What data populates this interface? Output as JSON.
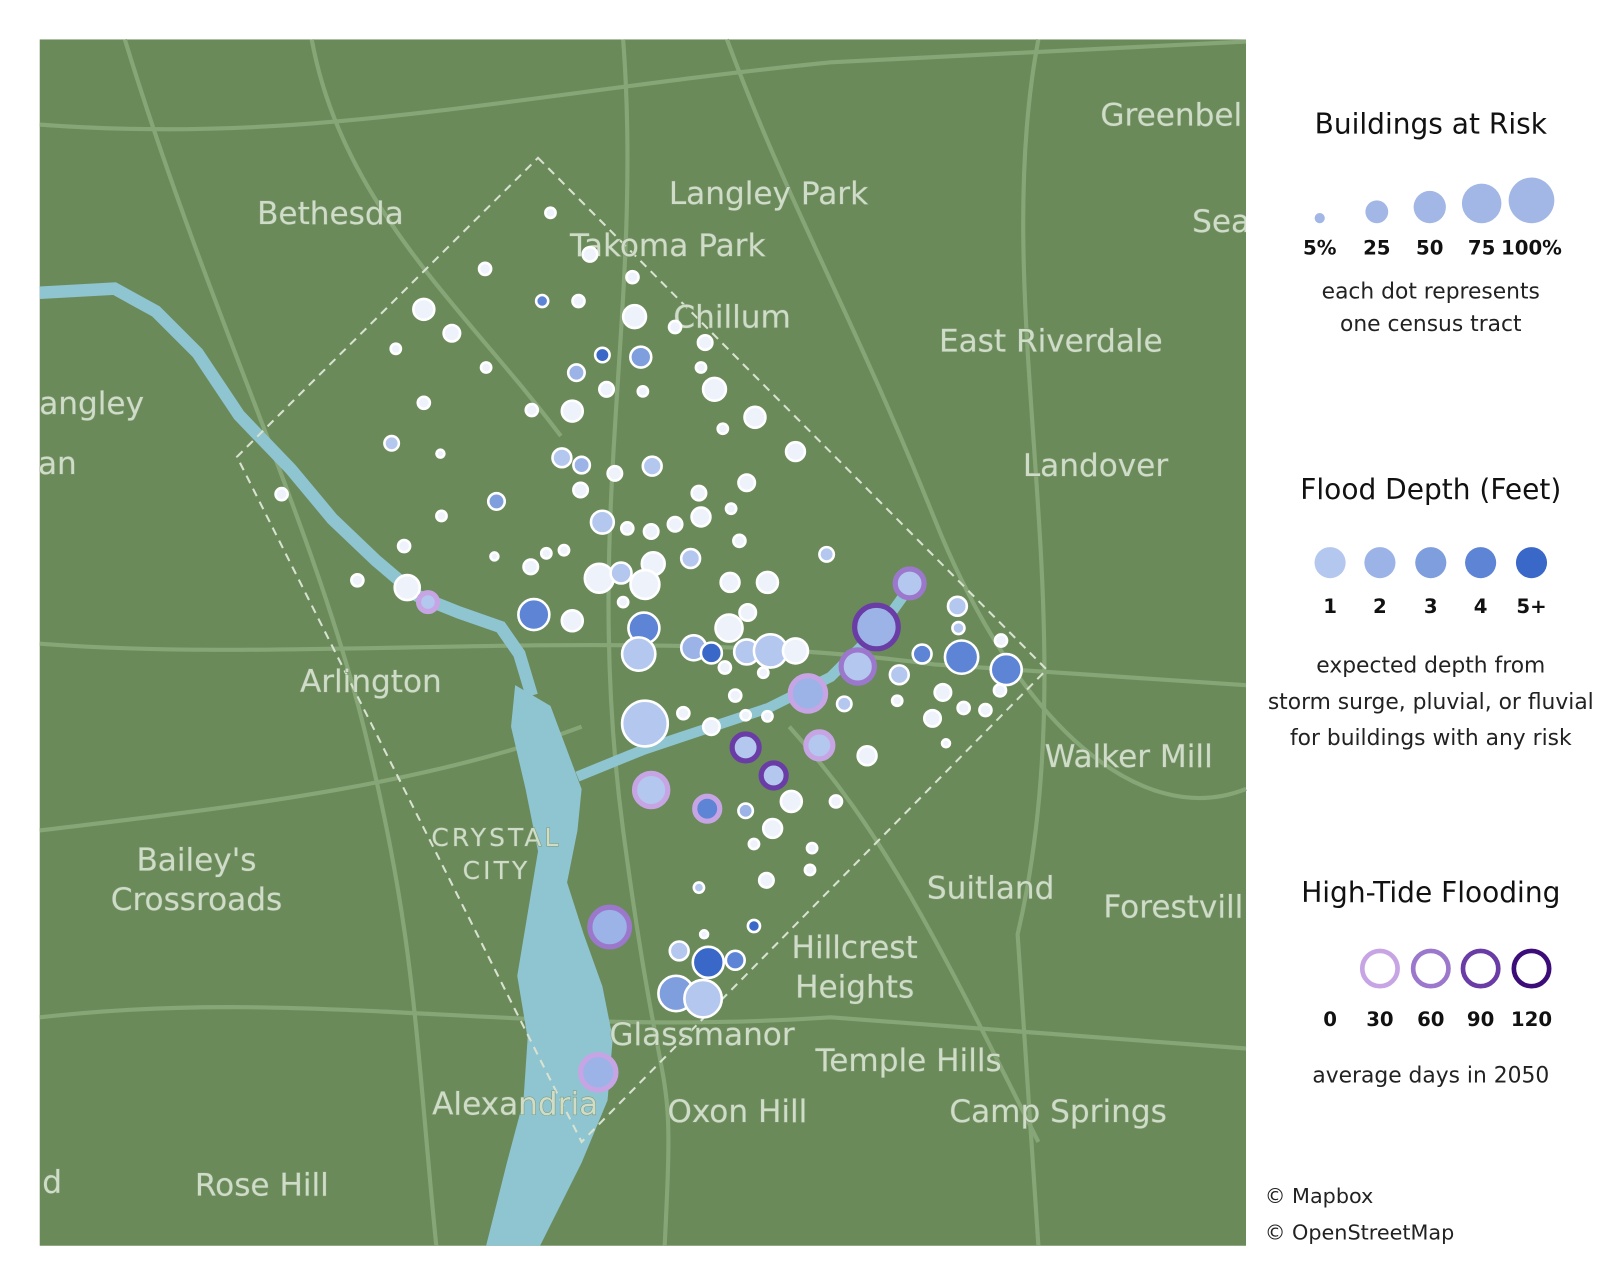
{
  "map": {
    "places": [
      "Greenbel",
      "Sea",
      "Bethesda",
      "Langley Park",
      "Takoma Park",
      "Chillum",
      "East Riverdale",
      "angley",
      "an",
      "Landover",
      "Arlington",
      "Walker Mill",
      "CRYSTAL",
      "CITY",
      "Bailey's",
      "Crossroads",
      "Suitland",
      "Forestvill",
      "Hillcrest",
      "Heights",
      "Glassmanor",
      "Temple Hills",
      "Alexandria",
      "Oxon Hill",
      "Camp Springs",
      "d",
      "Rose Hill"
    ],
    "attribution": [
      "© Mapbox",
      "© OpenStreetMap"
    ],
    "tracts": {
      "risk": [
        5,
        10,
        7,
        7,
        7,
        7,
        21,
        25,
        13,
        7,
        10,
        5,
        10,
        21,
        5,
        5,
        13,
        10,
        5,
        25,
        7,
        7,
        21,
        21,
        5,
        10,
        3,
        17,
        13,
        17,
        17,
        10,
        10,
        13,
        7,
        13,
        10,
        5,
        5,
        25,
        17,
        10,
        7,
        10,
        7,
        7,
        3,
        5,
        5,
        10,
        10,
        25,
        17,
        40,
        21,
        40,
        17,
        21,
        7,
        30,
        5,
        17,
        40,
        13,
        46,
        21,
        17,
        46,
        35,
        91,
        7,
        7,
        53,
        30,
        21,
        30,
        53,
        30,
        53,
        17,
        53,
        46,
        17,
        7,
        5,
        60,
        7,
        7,
        5,
        13,
        10,
        100,
        7,
        5,
        5,
        13,
        7,
        7,
        13,
        35,
        35,
        3,
        17,
        30,
        53,
        30,
        21,
        10,
        7,
        17,
        5,
        5,
        5,
        10,
        5,
        75,
        7,
        3,
        17,
        46,
        17,
        60,
        67,
        60
      ],
      "depth": [
        0,
        0,
        0,
        0,
        4,
        0,
        0,
        0,
        0,
        0,
        0,
        0,
        5,
        3,
        0,
        0,
        2,
        0,
        0,
        0,
        0,
        0,
        0,
        0,
        0,
        1,
        0,
        1,
        2,
        1,
        0,
        0,
        0,
        0,
        0,
        3,
        0,
        0,
        0,
        1,
        0,
        0,
        0,
        0,
        0,
        0,
        0,
        0,
        0,
        0,
        1,
        0,
        1,
        0,
        1,
        0,
        0,
        0,
        0,
        0,
        0,
        1,
        1,
        0,
        4,
        0,
        1,
        4,
        0,
        2,
        1,
        0,
        1,
        2,
        5,
        1,
        1,
        0,
        1,
        4,
        4,
        4,
        1,
        0,
        0,
        2,
        0,
        0,
        0,
        0,
        1,
        1,
        0,
        0,
        0,
        0,
        0,
        0,
        0,
        1,
        1,
        0,
        0,
        1,
        1,
        4,
        0,
        2,
        0,
        0,
        0,
        0,
        0,
        0,
        1,
        2,
        5,
        0,
        1,
        5,
        4,
        3,
        1,
        2
      ],
      "high_tide_days": [
        0,
        0,
        0,
        0,
        0,
        0,
        0,
        0,
        0,
        0,
        0,
        0,
        0,
        0,
        0,
        0,
        0,
        0,
        0,
        0,
        0,
        0,
        0,
        0,
        0,
        0,
        0,
        0,
        0,
        0,
        0,
        0,
        0,
        0,
        0,
        0,
        0,
        0,
        0,
        0,
        0,
        0,
        0,
        0,
        0,
        0,
        0,
        0,
        0,
        0,
        0,
        0,
        0,
        0,
        0,
        0,
        0,
        0,
        0,
        0,
        0,
        30,
        60,
        0,
        0,
        0,
        0,
        0,
        0,
        90,
        0,
        0,
        0,
        0,
        0,
        0,
        0,
        0,
        60,
        0,
        0,
        0,
        0,
        0,
        0,
        30,
        0,
        0,
        0,
        0,
        0,
        0,
        0,
        0,
        0,
        0,
        0,
        0,
        0,
        90,
        30,
        0,
        0,
        90,
        30,
        30,
        0,
        0,
        0,
        0,
        0,
        0,
        0,
        0,
        0,
        60,
        0,
        0,
        0,
        0,
        0,
        0,
        0,
        30
      ]
    }
  },
  "legend": {
    "risk": {
      "title": "Buildings at Risk",
      "values": [
        {
          "value": 5,
          "label": "5%"
        },
        25,
        50,
        75,
        {
          "value": 100,
          "label": "100%"
        }
      ],
      "color": "#a3b7e6",
      "note": [
        "each dot represents",
        "one census tract"
      ]
    },
    "depth": {
      "title": "Flood Depth (Feet)",
      "values": [
        1,
        2,
        3,
        4,
        {
          "value": 5,
          "label": "5+"
        }
      ],
      "colors": [
        "#b4c7ee",
        "#9bb3e6",
        "#7f9edd",
        "#5e84d5",
        "#3a68c8"
      ],
      "note": [
        "expected depth from",
        "storm surge, pluvial, or fluvial",
        "for buildings with any risk"
      ]
    },
    "tide": {
      "title": "High-Tide Flooding",
      "values": [
        0,
        30,
        60,
        90,
        120
      ],
      "colors": [
        "#ffffff",
        "#c7a5e5",
        "#9c78cd",
        "#6a3ca6",
        "#3c0d78"
      ],
      "note": "average days in 2050"
    }
  }
}
